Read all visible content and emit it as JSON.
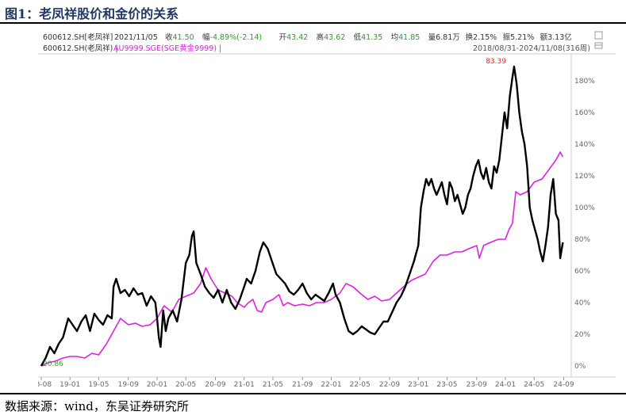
{
  "figure": {
    "title": "图1：老凤祥股价和金价的关系",
    "source": "数据来源：wind，东吴证券研究所"
  },
  "quote_bar": {
    "code": "600612.SH[老凤祥]",
    "date": "2021/11/05",
    "items": [
      {
        "label": "收",
        "value": "41.50",
        "color": "#2a9d2a"
      },
      {
        "label": "幅",
        "value": "-4.89%(-2.14)",
        "color": "#2a9d2a"
      },
      {
        "label": "开",
        "value": "43.42",
        "color": "#2a9d2a"
      },
      {
        "label": "高",
        "value": "43.62",
        "color": "#2a9d2a"
      },
      {
        "label": "低",
        "value": "41.35",
        "color": "#2a9d2a"
      },
      {
        "label": "均",
        "value": "41.85",
        "color": "#2a9d2a"
      },
      {
        "label": "量",
        "value": "6.81万",
        "color": "#333333"
      },
      {
        "label": "换",
        "value": "2.15%",
        "color": "#333333"
      },
      {
        "label": "振",
        "value": "5.21%",
        "color": "#333333"
      },
      {
        "label": "额",
        "value": "3.13亿",
        "color": "#333333"
      }
    ]
  },
  "legend_bar": {
    "series1": "600612.SH(老凤祥) |",
    "series2": "AU9999.SGE(SGE黄金9999) |",
    "range": "2018/08/31-2024/11/08(316周)"
  },
  "icons": [
    "square-icon",
    "restore-icon"
  ],
  "chart_data": {
    "type": "line",
    "y_unit": "%",
    "ylim": [
      -5,
      195
    ],
    "yticks": [
      "0%",
      "20%",
      "40%",
      "60%",
      "80%",
      "100%",
      "120%",
      "140%",
      "160%",
      "180%"
    ],
    "ytick_values": [
      0,
      20,
      40,
      60,
      80,
      100,
      120,
      140,
      160,
      180
    ],
    "xticks": [
      "18-08",
      "19-01",
      "19-05",
      "19-09",
      "20-01",
      "20-05",
      "20-09",
      "21-01",
      "21-05",
      "21-09",
      "22-01",
      "22-05",
      "22-09",
      "23-01",
      "23-05",
      "23-09",
      "24-01",
      "24-05",
      "24-09"
    ],
    "xtick_values": [
      2018.67,
      2019.0,
      2019.33,
      2019.67,
      2020.0,
      2020.33,
      2020.67,
      2021.0,
      2021.33,
      2021.67,
      2022.0,
      2022.33,
      2022.67,
      2023.0,
      2023.33,
      2023.67,
      2024.0,
      2024.33,
      2024.67
    ],
    "annotations": [
      {
        "text": "83.39",
        "x": 2024.1,
        "y": 189,
        "color": "#d62728"
      },
      {
        "text": "20.86",
        "x": 2018.67,
        "y": 0,
        "color": "#2a9d2a"
      }
    ],
    "grid": false,
    "series": [
      {
        "name": "600612.SH(老凤祥)",
        "color": "#000000",
        "points": [
          [
            2018.67,
            0
          ],
          [
            2018.72,
            5
          ],
          [
            2018.77,
            12
          ],
          [
            2018.82,
            8
          ],
          [
            2018.87,
            14
          ],
          [
            2018.92,
            18
          ],
          [
            2018.98,
            30
          ],
          [
            2019.03,
            26
          ],
          [
            2019.08,
            22
          ],
          [
            2019.13,
            28
          ],
          [
            2019.18,
            32
          ],
          [
            2019.23,
            22
          ],
          [
            2019.28,
            33
          ],
          [
            2019.33,
            29
          ],
          [
            2019.38,
            26
          ],
          [
            2019.43,
            32
          ],
          [
            2019.48,
            30
          ],
          [
            2019.5,
            50
          ],
          [
            2019.53,
            55
          ],
          [
            2019.58,
            46
          ],
          [
            2019.63,
            48
          ],
          [
            2019.68,
            44
          ],
          [
            2019.73,
            49
          ],
          [
            2019.78,
            45
          ],
          [
            2019.83,
            46
          ],
          [
            2019.88,
            38
          ],
          [
            2019.93,
            44
          ],
          [
            2019.98,
            40
          ],
          [
            2020.0,
            30
          ],
          [
            2020.02,
            18
          ],
          [
            2020.04,
            12
          ],
          [
            2020.07,
            35
          ],
          [
            2020.1,
            22
          ],
          [
            2020.13,
            30
          ],
          [
            2020.18,
            35
          ],
          [
            2020.23,
            28
          ],
          [
            2020.28,
            42
          ],
          [
            2020.33,
            65
          ],
          [
            2020.37,
            70
          ],
          [
            2020.4,
            82
          ],
          [
            2020.42,
            85
          ],
          [
            2020.45,
            65
          ],
          [
            2020.5,
            58
          ],
          [
            2020.55,
            50
          ],
          [
            2020.6,
            46
          ],
          [
            2020.65,
            43
          ],
          [
            2020.7,
            48
          ],
          [
            2020.75,
            40
          ],
          [
            2020.8,
            48
          ],
          [
            2020.85,
            40
          ],
          [
            2020.9,
            36
          ],
          [
            2020.95,
            42
          ],
          [
            2021.0,
            50
          ],
          [
            2021.03,
            55
          ],
          [
            2021.08,
            52
          ],
          [
            2021.13,
            60
          ],
          [
            2021.18,
            72
          ],
          [
            2021.22,
            78
          ],
          [
            2021.27,
            74
          ],
          [
            2021.32,
            66
          ],
          [
            2021.37,
            58
          ],
          [
            2021.42,
            55
          ],
          [
            2021.47,
            52
          ],
          [
            2021.52,
            47
          ],
          [
            2021.57,
            45
          ],
          [
            2021.62,
            48
          ],
          [
            2021.67,
            52
          ],
          [
            2021.72,
            46
          ],
          [
            2021.77,
            42
          ],
          [
            2021.82,
            45
          ],
          [
            2021.87,
            43
          ],
          [
            2021.92,
            41
          ],
          [
            2021.97,
            46
          ],
          [
            2022.02,
            52
          ],
          [
            2022.05,
            45
          ],
          [
            2022.1,
            40
          ],
          [
            2022.15,
            30
          ],
          [
            2022.2,
            22
          ],
          [
            2022.25,
            20
          ],
          [
            2022.3,
            22
          ],
          [
            2022.35,
            25
          ],
          [
            2022.4,
            23
          ],
          [
            2022.45,
            21
          ],
          [
            2022.5,
            20
          ],
          [
            2022.55,
            24
          ],
          [
            2022.6,
            28
          ],
          [
            2022.65,
            28
          ],
          [
            2022.7,
            34
          ],
          [
            2022.75,
            40
          ],
          [
            2022.8,
            44
          ],
          [
            2022.85,
            50
          ],
          [
            2022.9,
            58
          ],
          [
            2022.95,
            66
          ],
          [
            2023.0,
            76
          ],
          [
            2023.03,
            100
          ],
          [
            2023.06,
            110
          ],
          [
            2023.09,
            118
          ],
          [
            2023.12,
            114
          ],
          [
            2023.15,
            118
          ],
          [
            2023.18,
            112
          ],
          [
            2023.21,
            108
          ],
          [
            2023.24,
            112
          ],
          [
            2023.27,
            116
          ],
          [
            2023.3,
            108
          ],
          [
            2023.33,
            102
          ],
          [
            2023.36,
            116
          ],
          [
            2023.39,
            112
          ],
          [
            2023.42,
            104
          ],
          [
            2023.45,
            108
          ],
          [
            2023.48,
            102
          ],
          [
            2023.51,
            96
          ],
          [
            2023.54,
            100
          ],
          [
            2023.57,
            108
          ],
          [
            2023.6,
            112
          ],
          [
            2023.63,
            120
          ],
          [
            2023.66,
            126
          ],
          [
            2023.69,
            130
          ],
          [
            2023.72,
            122
          ],
          [
            2023.75,
            118
          ],
          [
            2023.78,
            125
          ],
          [
            2023.81,
            116
          ],
          [
            2023.84,
            112
          ],
          [
            2023.87,
            126
          ],
          [
            2023.9,
            122
          ],
          [
            2023.93,
            130
          ],
          [
            2023.96,
            145
          ],
          [
            2023.99,
            160
          ],
          [
            2024.02,
            150
          ],
          [
            2024.05,
            170
          ],
          [
            2024.08,
            182
          ],
          [
            2024.1,
            189
          ],
          [
            2024.13,
            178
          ],
          [
            2024.16,
            160
          ],
          [
            2024.19,
            148
          ],
          [
            2024.22,
            140
          ],
          [
            2024.25,
            126
          ],
          [
            2024.28,
            100
          ],
          [
            2024.31,
            92
          ],
          [
            2024.34,
            86
          ],
          [
            2024.37,
            80
          ],
          [
            2024.4,
            72
          ],
          [
            2024.43,
            66
          ],
          [
            2024.46,
            76
          ],
          [
            2024.49,
            88
          ],
          [
            2024.52,
            108
          ],
          [
            2024.55,
            118
          ],
          [
            2024.58,
            96
          ],
          [
            2024.61,
            92
          ],
          [
            2024.63,
            68
          ],
          [
            2024.66,
            78
          ]
        ]
      },
      {
        "name": "AU9999.SGE(SGE黄金9999)",
        "color": "#e020e0",
        "points": [
          [
            2018.67,
            0
          ],
          [
            2018.75,
            2
          ],
          [
            2018.83,
            3
          ],
          [
            2018.92,
            5
          ],
          [
            2019.0,
            6
          ],
          [
            2019.08,
            6
          ],
          [
            2019.17,
            5
          ],
          [
            2019.25,
            8
          ],
          [
            2019.33,
            7
          ],
          [
            2019.42,
            14
          ],
          [
            2019.5,
            22
          ],
          [
            2019.58,
            30
          ],
          [
            2019.67,
            26
          ],
          [
            2019.75,
            27
          ],
          [
            2019.83,
            25
          ],
          [
            2019.92,
            26
          ],
          [
            2020.0,
            30
          ],
          [
            2020.08,
            38
          ],
          [
            2020.17,
            34
          ],
          [
            2020.25,
            42
          ],
          [
            2020.33,
            44
          ],
          [
            2020.42,
            46
          ],
          [
            2020.5,
            52
          ],
          [
            2020.56,
            62
          ],
          [
            2020.62,
            55
          ],
          [
            2020.7,
            48
          ],
          [
            2020.78,
            46
          ],
          [
            2020.86,
            44
          ],
          [
            2020.92,
            40
          ],
          [
            2021.0,
            37
          ],
          [
            2021.05,
            40
          ],
          [
            2021.1,
            42
          ],
          [
            2021.15,
            35
          ],
          [
            2021.2,
            34
          ],
          [
            2021.25,
            40
          ],
          [
            2021.33,
            42
          ],
          [
            2021.4,
            45
          ],
          [
            2021.45,
            38
          ],
          [
            2021.5,
            40
          ],
          [
            2021.58,
            38
          ],
          [
            2021.67,
            39
          ],
          [
            2021.75,
            38
          ],
          [
            2021.83,
            40
          ],
          [
            2021.92,
            40
          ],
          [
            2022.0,
            42
          ],
          [
            2022.1,
            46
          ],
          [
            2022.17,
            52
          ],
          [
            2022.25,
            50
          ],
          [
            2022.33,
            46
          ],
          [
            2022.42,
            42
          ],
          [
            2022.5,
            44
          ],
          [
            2022.58,
            41
          ],
          [
            2022.67,
            42
          ],
          [
            2022.75,
            46
          ],
          [
            2022.83,
            50
          ],
          [
            2022.92,
            54
          ],
          [
            2023.0,
            56
          ],
          [
            2023.08,
            58
          ],
          [
            2023.17,
            66
          ],
          [
            2023.25,
            70
          ],
          [
            2023.33,
            70
          ],
          [
            2023.42,
            72
          ],
          [
            2023.5,
            72
          ],
          [
            2023.58,
            74
          ],
          [
            2023.67,
            76
          ],
          [
            2023.7,
            68
          ],
          [
            2023.75,
            76
          ],
          [
            2023.83,
            78
          ],
          [
            2023.92,
            80
          ],
          [
            2024.0,
            80
          ],
          [
            2024.04,
            86
          ],
          [
            2024.08,
            90
          ],
          [
            2024.12,
            110
          ],
          [
            2024.17,
            108
          ],
          [
            2024.25,
            110
          ],
          [
            2024.33,
            116
          ],
          [
            2024.42,
            118
          ],
          [
            2024.5,
            124
          ],
          [
            2024.58,
            130
          ],
          [
            2024.63,
            135
          ],
          [
            2024.66,
            132
          ]
        ]
      }
    ]
  }
}
